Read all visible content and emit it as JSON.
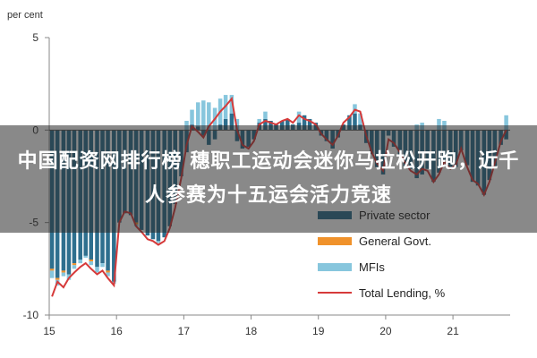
{
  "overlay": {
    "caption": "中国配资网排行榜 穗职工运动会迷你马拉松开跑，近千人参赛为十五运会活力竞速"
  },
  "chart_data": {
    "type": "bar",
    "ylabel": "per cent",
    "ylim": [
      -10,
      5
    ],
    "yticks": [
      5,
      0,
      -5,
      -10
    ],
    "x_ticks": [
      "15",
      "16",
      "17",
      "18",
      "19",
      "20",
      "21"
    ],
    "x_start": 2015.0,
    "x_end": 2021.85,
    "legend_position": "bottom-right",
    "colors": {
      "private": "#2e6f8e",
      "government": "#f0922b",
      "mfis": "#87c6dd",
      "total": "#d63a3a",
      "axis": "#888888"
    },
    "series": [
      {
        "name": "Private sector",
        "kind": "bar",
        "color_key": "private"
      },
      {
        "name": "General Govt.",
        "kind": "bar",
        "color_key": "government"
      },
      {
        "name": "MFIs",
        "kind": "bar",
        "color_key": "mfis"
      },
      {
        "name": "Total Lending, %",
        "kind": "line",
        "color_key": "total"
      }
    ],
    "months": [
      2015.0,
      2015.08,
      2015.17,
      2015.25,
      2015.33,
      2015.42,
      2015.5,
      2015.58,
      2015.67,
      2015.75,
      2015.83,
      2015.92,
      2016.0,
      2016.08,
      2016.17,
      2016.25,
      2016.33,
      2016.42,
      2016.5,
      2016.58,
      2016.67,
      2016.75,
      2016.83,
      2016.92,
      2017.0,
      2017.08,
      2017.17,
      2017.25,
      2017.33,
      2017.42,
      2017.5,
      2017.58,
      2017.67,
      2017.75,
      2017.83,
      2017.92,
      2018.0,
      2018.08,
      2018.17,
      2018.25,
      2018.33,
      2018.42,
      2018.5,
      2018.58,
      2018.67,
      2018.75,
      2018.83,
      2018.92,
      2019.0,
      2019.08,
      2019.17,
      2019.25,
      2019.33,
      2019.42,
      2019.5,
      2019.58,
      2019.67,
      2019.75,
      2019.83,
      2019.92,
      2020.0,
      2020.08,
      2020.17,
      2020.25,
      2020.33,
      2020.42,
      2020.5,
      2020.58,
      2020.67,
      2020.75,
      2020.83,
      2020.92,
      2021.0,
      2021.08,
      2021.17,
      2021.25,
      2021.33,
      2021.42,
      2021.5,
      2021.58,
      2021.67,
      2021.75
    ],
    "private": [
      -7.5,
      -8.0,
      -7.6,
      -7.8,
      -7.2,
      -7.0,
      -6.8,
      -7.0,
      -7.4,
      -7.2,
      -7.6,
      -8.2,
      -5.0,
      -4.5,
      -4.6,
      -5.0,
      -5.4,
      -5.7,
      -5.9,
      -6.0,
      -5.8,
      -5.2,
      -4.0,
      -2.5,
      -1.2,
      0.3,
      0.2,
      -0.3,
      -0.8,
      -0.5,
      0.3,
      0.6,
      0.9,
      -0.6,
      -1.0,
      -0.9,
      -0.5,
      0.4,
      0.6,
      0.5,
      0.3,
      0.5,
      0.6,
      0.3,
      0.4,
      0.8,
      0.6,
      0.4,
      -0.3,
      -0.6,
      -1.0,
      -0.4,
      0.3,
      0.8,
      0.9,
      0.3,
      -0.7,
      -1.3,
      -2.0,
      -2.4,
      -0.3,
      -0.9,
      -1.4,
      -2.0,
      -2.1,
      -2.6,
      -2.4,
      -2.1,
      -2.8,
      -2.3,
      -1.6,
      -2.0,
      -2.0,
      -1.1,
      -1.9,
      -2.8,
      -3.0,
      -3.5,
      -2.7,
      -2.0,
      -0.8,
      -0.5
    ],
    "government": [
      -0.1,
      -0.1,
      -0.1,
      0.0,
      -0.1,
      0.0,
      0.0,
      -0.1,
      0.0,
      0.0,
      -0.1,
      0.0,
      0.0,
      0.0,
      0.0,
      -0.1,
      0.0,
      0.0,
      0.0,
      0.0,
      0.0,
      0.0,
      0.0,
      0.0,
      0.0,
      0.0,
      0.0,
      0.0,
      0.0,
      0.0,
      0.0,
      0.0,
      0.0,
      0.0,
      0.0,
      0.0,
      0.0,
      0.0,
      0.0,
      0.0,
      0.0,
      0.0,
      0.0,
      0.0,
      0.0,
      0.0,
      0.0,
      0.0,
      0.0,
      0.0,
      0.0,
      0.0,
      0.0,
      0.0,
      0.0,
      0.0,
      0.0,
      0.0,
      0.0,
      0.0,
      0.0,
      0.0,
      0.0,
      0.0,
      0.0,
      0.0,
      0.0,
      0.0,
      0.0,
      0.0,
      0.0,
      0.0,
      0.0,
      0.0,
      0.0,
      0.0,
      0.0,
      0.0,
      0.0,
      0.0,
      0.0,
      0.0
    ],
    "mfis": [
      -0.4,
      -0.3,
      -0.2,
      -0.3,
      -0.2,
      -0.2,
      -0.1,
      -0.2,
      -0.3,
      -0.2,
      -0.2,
      -0.1,
      0.0,
      0.0,
      0.0,
      -0.1,
      0.0,
      0.0,
      0.0,
      -0.1,
      0.0,
      0.0,
      0.0,
      0.0,
      0.5,
      0.8,
      1.3,
      1.6,
      1.5,
      1.2,
      1.4,
      1.3,
      1.0,
      0.6,
      0.0,
      0.0,
      0.0,
      0.2,
      0.4,
      0.0,
      0.0,
      0.0,
      0.0,
      0.0,
      0.6,
      0.0,
      0.0,
      0.0,
      0.0,
      0.0,
      0.0,
      0.0,
      0.0,
      0.0,
      0.5,
      0.6,
      0.0,
      0.0,
      0.0,
      0.0,
      0.0,
      0.0,
      0.0,
      0.0,
      0.0,
      0.3,
      0.4,
      0.0,
      0.0,
      0.6,
      0.5,
      0.0,
      0.0,
      0.0,
      0.0,
      0.0,
      0.0,
      0.0,
      0.0,
      0.0,
      0.0,
      0.8
    ],
    "total": [
      -9.0,
      -8.2,
      -8.5,
      -8.0,
      -7.7,
      -7.4,
      -7.2,
      -7.5,
      -7.8,
      -7.6,
      -8.0,
      -8.4,
      -5.0,
      -4.4,
      -4.5,
      -5.2,
      -5.5,
      -5.9,
      -6.0,
      -6.2,
      -6.0,
      -5.3,
      -4.2,
      -2.6,
      -0.8,
      0.2,
      -0.1,
      -0.4,
      0.2,
      0.6,
      1.0,
      1.3,
      1.7,
      0.0,
      -0.8,
      -1.0,
      -0.6,
      0.3,
      0.5,
      0.4,
      0.3,
      0.5,
      0.6,
      0.4,
      0.8,
      0.6,
      0.5,
      0.3,
      -0.2,
      -0.5,
      -0.8,
      -0.3,
      0.4,
      0.7,
      1.1,
      1.0,
      -0.3,
      -1.2,
      -1.8,
      -2.2,
      -0.5,
      -0.7,
      -1.2,
      -1.8,
      -2.2,
      -2.4,
      -2.1,
      -2.2,
      -2.8,
      -2.4,
      -1.7,
      -2.1,
      -1.9,
      -1.0,
      -2.0,
      -2.7,
      -2.9,
      -3.5,
      -2.8,
      -1.8,
      -0.6,
      0.0
    ]
  }
}
